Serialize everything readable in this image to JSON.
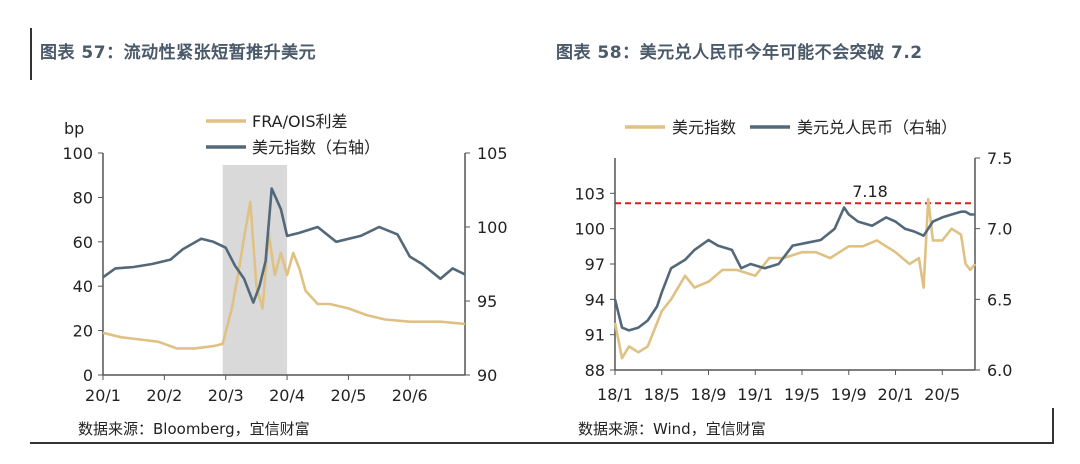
{
  "chart_data": [
    {
      "type": "line",
      "title": "图表 57：流动性紧张短暂推升美元",
      "ylabel": "bp",
      "source": "数据来源：Bloomberg，宜信财富",
      "x_ticks": [
        "20/1",
        "20/2",
        "20/3",
        "20/4",
        "20/5",
        "20/6"
      ],
      "x_range": [
        0,
        5.9
      ],
      "ylim": [
        0,
        100
      ],
      "y_ticks": [
        0,
        20,
        40,
        60,
        80,
        100
      ],
      "y2lim": [
        90,
        105
      ],
      "y2_ticks": [
        90,
        95,
        100,
        105
      ],
      "shaded_region": [
        1.95,
        3.0
      ],
      "series": [
        {
          "name": "FRA/OIS利差",
          "axis": "left",
          "color": "#dfc283",
          "x": [
            0,
            0.3,
            0.6,
            0.9,
            1.2,
            1.5,
            1.8,
            1.95,
            2.1,
            2.2,
            2.3,
            2.4,
            2.5,
            2.6,
            2.7,
            2.8,
            2.9,
            3.0,
            3.1,
            3.2,
            3.3,
            3.5,
            3.7,
            4.0,
            4.3,
            4.6,
            5.0,
            5.5,
            5.9
          ],
          "y": [
            19,
            17,
            16,
            15,
            12,
            12,
            13,
            14,
            30,
            45,
            62,
            78,
            40,
            30,
            64,
            45,
            55,
            45,
            55,
            48,
            38,
            32,
            32,
            30,
            27,
            25,
            24,
            24,
            23
          ]
        },
        {
          "name": "美元指数（右轴）",
          "axis": "right",
          "color": "#536878",
          "x": [
            0,
            0.2,
            0.5,
            0.8,
            1.1,
            1.3,
            1.6,
            1.8,
            2.0,
            2.15,
            2.3,
            2.45,
            2.55,
            2.65,
            2.75,
            2.9,
            3.0,
            3.2,
            3.5,
            3.8,
            4.2,
            4.5,
            4.8,
            5.0,
            5.2,
            5.5,
            5.7,
            5.9
          ],
          "y": [
            96.6,
            97.2,
            97.3,
            97.5,
            97.8,
            98.5,
            99.2,
            99.0,
            98.6,
            97.4,
            96.5,
            94.9,
            96.0,
            97.7,
            102.6,
            101.2,
            99.4,
            99.6,
            100.0,
            99.0,
            99.4,
            100.0,
            99.5,
            98.0,
            97.5,
            96.5,
            97.2,
            96.8
          ]
        }
      ]
    },
    {
      "type": "line",
      "title": "图表 58：美元兑人民币今年可能不会突破 7.2",
      "source": "数据来源：Wind，宜信财富",
      "x_ticks": [
        "18/1",
        "18/5",
        "18/9",
        "19/1",
        "19/5",
        "19/9",
        "20/1",
        "20/5"
      ],
      "x_range": [
        0,
        7.7
      ],
      "ylim": [
        88,
        106
      ],
      "y_ticks": [
        88,
        91,
        94,
        97,
        100,
        103
      ],
      "y2lim": [
        6.0,
        7.5
      ],
      "y2_ticks": [
        6.0,
        6.5,
        7.0,
        7.5
      ],
      "reference_line": {
        "label": "7.18",
        "value": 7.18,
        "axis": "right",
        "color": "#d9211b"
      },
      "series": [
        {
          "name": "美元指数",
          "axis": "left",
          "color": "#dfc283",
          "x": [
            0,
            0.15,
            0.3,
            0.5,
            0.7,
            0.9,
            1.0,
            1.2,
            1.5,
            1.7,
            2.0,
            2.3,
            2.6,
            3.0,
            3.3,
            3.6,
            4.0,
            4.3,
            4.6,
            5.0,
            5.3,
            5.6,
            6.0,
            6.3,
            6.5,
            6.6,
            6.7,
            6.8,
            7.0,
            7.2,
            7.4,
            7.5,
            7.6,
            7.7
          ],
          "y": [
            92,
            89,
            90,
            89.5,
            90,
            92,
            93,
            94,
            96,
            95,
            95.5,
            96.5,
            96.5,
            96,
            97.5,
            97.5,
            98,
            98,
            97.5,
            98.5,
            98.5,
            99,
            98,
            97,
            97.5,
            95,
            102.5,
            99,
            99,
            100,
            99.5,
            97,
            96.5,
            97
          ]
        },
        {
          "name": "美元兑人民币（右轴）",
          "axis": "right",
          "color": "#536878",
          "x": [
            0,
            0.15,
            0.3,
            0.5,
            0.7,
            0.9,
            1.0,
            1.2,
            1.5,
            1.7,
            2.0,
            2.2,
            2.5,
            2.7,
            2.9,
            3.2,
            3.5,
            3.8,
            4.1,
            4.4,
            4.7,
            4.9,
            5.0,
            5.2,
            5.5,
            5.8,
            6.0,
            6.2,
            6.4,
            6.6,
            6.8,
            7.0,
            7.2,
            7.4,
            7.5,
            7.6,
            7.7
          ],
          "y": [
            6.5,
            6.3,
            6.28,
            6.3,
            6.35,
            6.45,
            6.55,
            6.72,
            6.78,
            6.85,
            6.92,
            6.88,
            6.85,
            6.72,
            6.75,
            6.72,
            6.75,
            6.88,
            6.9,
            6.92,
            7.0,
            7.15,
            7.1,
            7.05,
            7.02,
            7.08,
            7.05,
            7.0,
            6.98,
            6.95,
            7.05,
            7.08,
            7.1,
            7.12,
            7.12,
            7.1,
            7.1
          ]
        }
      ]
    }
  ]
}
